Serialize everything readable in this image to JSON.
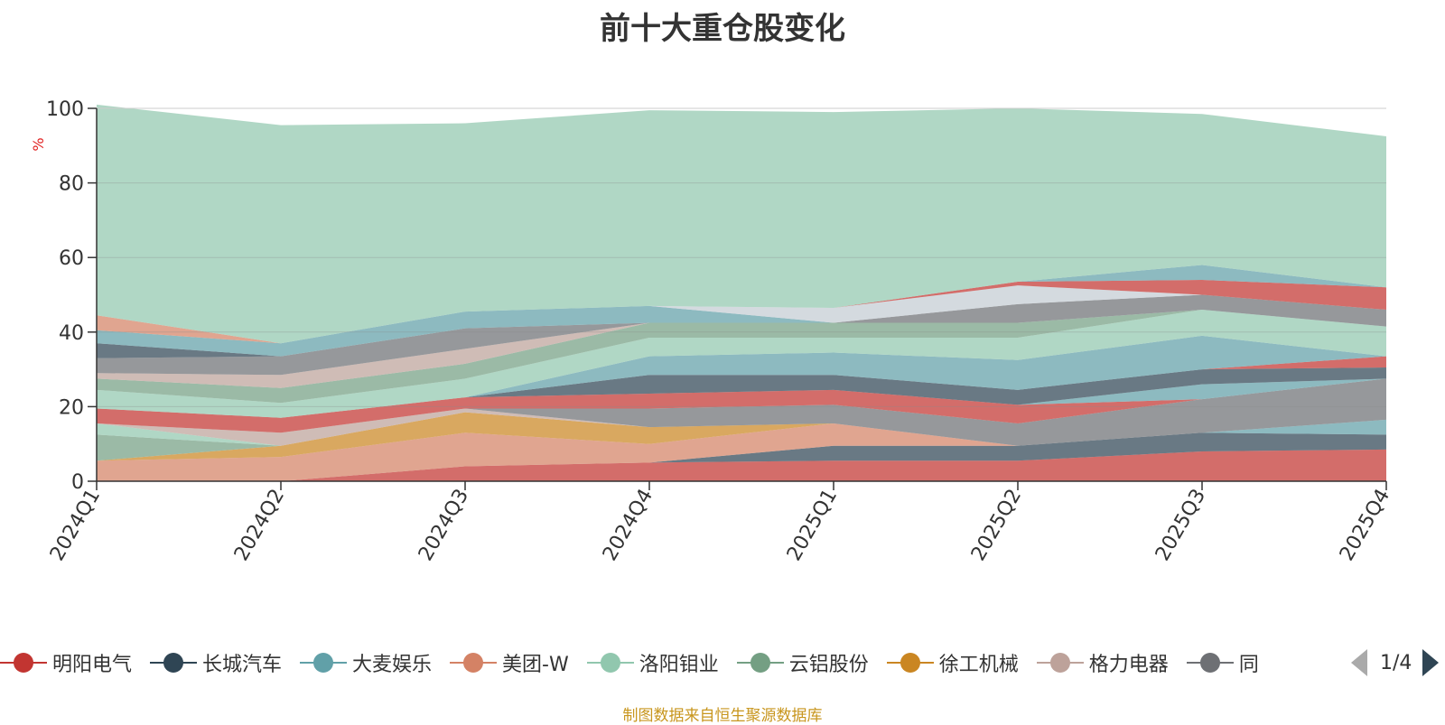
{
  "title": "前十大重仓股变化",
  "source_note": "制图数据来自恒生聚源数据库",
  "pager": {
    "text": "1/4"
  },
  "legend_last_partial": "同",
  "colors": {
    "明阳电气": "#c23531",
    "长城汽车": "#2f4554",
    "大麦娱乐": "#61a0a8",
    "美团-W": "#d48265",
    "洛阳钼业": "#91c7ae",
    "云铝股份": "#749f83",
    "徐工机械": "#ca8622",
    "格力电器": "#bda29a",
    "同": "#6e7074",
    "other": "#c4ccd3"
  },
  "chart_data": {
    "type": "area",
    "stacked": true,
    "title": "前十大重仓股变化",
    "ylabel": "%",
    "ylim": [
      0,
      100
    ],
    "yticks": [
      0,
      20,
      40,
      60,
      80,
      100
    ],
    "x": [
      "2024Q1",
      "2024Q2",
      "2024Q3",
      "2024Q4",
      "2025Q1",
      "2025Q2",
      "2025Q3",
      "2025Q4"
    ],
    "grid": true,
    "legend_position": "bottom",
    "series": [
      {
        "name": "明阳电气",
        "values": [
          0,
          0,
          4,
          5,
          5.5,
          5.5,
          8,
          8.5
        ]
      },
      {
        "name": "长城汽车",
        "values": [
          0,
          0,
          0,
          0,
          4,
          4,
          5,
          4
        ]
      },
      {
        "name": "大麦娱乐",
        "values": [
          0,
          0,
          0,
          0,
          0,
          0,
          0,
          4
        ]
      },
      {
        "name": "美团-W",
        "values": [
          5.5,
          6.5,
          9,
          5,
          6,
          0,
          0,
          0
        ]
      },
      {
        "name": "徐工机械",
        "values": [
          0,
          3,
          5.5,
          4.5,
          0,
          0,
          0,
          0
        ]
      },
      {
        "name": "云铝股份",
        "values": [
          7,
          0,
          0,
          0,
          0,
          0,
          0,
          0
        ]
      },
      {
        "name": "洛阳钼业",
        "values": [
          3,
          0,
          0,
          0,
          0,
          0,
          0,
          0
        ]
      },
      {
        "name": "格力电器",
        "values": [
          0,
          3.5,
          1,
          0,
          0,
          0,
          0,
          0
        ]
      },
      {
        "name": "同",
        "values": [
          0,
          0,
          0,
          5,
          5,
          6,
          9,
          11
        ]
      },
      {
        "name": "明阳电气",
        "values": [
          4,
          4,
          3,
          4,
          4,
          5,
          0,
          0
        ]
      },
      {
        "name": "大麦娱乐",
        "values": [
          0,
          0,
          0,
          0,
          0,
          0,
          4,
          0
        ]
      },
      {
        "name": "长城汽车",
        "values": [
          0,
          0,
          0,
          5,
          4,
          4,
          4,
          3
        ]
      },
      {
        "name": "明阳电气",
        "values": [
          0,
          0,
          0,
          0,
          0,
          0,
          0,
          3
        ]
      },
      {
        "name": "大麦娱乐",
        "values": [
          0,
          0,
          0,
          5,
          6,
          8,
          9,
          0
        ]
      },
      {
        "name": "洛阳钼业",
        "values": [
          5,
          4,
          5,
          5,
          4,
          6,
          7,
          8
        ]
      },
      {
        "name": "云铝股份",
        "values": [
          3,
          4,
          4,
          4,
          4,
          4,
          0,
          0
        ]
      },
      {
        "name": "格力电器",
        "values": [
          1.5,
          3.5,
          4,
          0,
          0,
          0,
          0,
          0
        ]
      },
      {
        "name": "同",
        "values": [
          4,
          5,
          5.5,
          0,
          0,
          5,
          4,
          4.5
        ]
      },
      {
        "name": "长城汽车",
        "values": [
          4,
          0,
          0,
          0,
          0,
          0,
          0,
          0
        ]
      },
      {
        "name": "大麦娱乐",
        "values": [
          3.5,
          3.5,
          4.5,
          4.5,
          0,
          0,
          0,
          0
        ]
      },
      {
        "name": "other",
        "values": [
          0,
          0,
          0,
          0,
          4,
          5,
          0,
          0
        ]
      },
      {
        "name": "明阳电气",
        "values": [
          0,
          0,
          0,
          0,
          0,
          1,
          4,
          6
        ]
      },
      {
        "name": "大麦娱乐",
        "values": [
          0,
          0,
          0,
          0,
          0,
          0,
          4,
          0
        ]
      },
      {
        "name": "美团-W",
        "values": [
          4,
          0,
          0,
          0,
          0,
          0,
          0,
          0
        ]
      },
      {
        "name": "洛阳钼业",
        "values": [
          56.5,
          58.5,
          50.5,
          52.5,
          52.5,
          46.5,
          40.5,
          40.5
        ]
      }
    ]
  },
  "legend": [
    {
      "name": "明阳电气",
      "color": "#c23531"
    },
    {
      "name": "长城汽车",
      "color": "#2f4554"
    },
    {
      "name": "大麦娱乐",
      "color": "#61a0a8"
    },
    {
      "name": "美团-W",
      "color": "#d48265"
    },
    {
      "name": "洛阳钼业",
      "color": "#91c7ae"
    },
    {
      "name": "云铝股份",
      "color": "#749f83"
    },
    {
      "name": "徐工机械",
      "color": "#ca8622"
    },
    {
      "name": "格力电器",
      "color": "#bda29a"
    },
    {
      "name": "同",
      "color": "#6e7074"
    }
  ]
}
